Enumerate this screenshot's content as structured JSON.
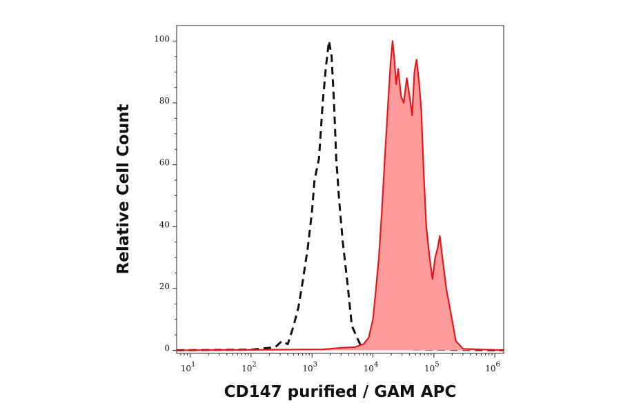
{
  "chart_data": {
    "type": "area",
    "xlabel": "CD147 purified / GAM APC",
    "ylabel": "Relative Cell Count",
    "x_scale": "log",
    "xlim": [
      6,
      1400000
    ],
    "ylim": [
      -1,
      105
    ],
    "x_ticks": [
      {
        "value": 10,
        "base": "10",
        "exp": "1"
      },
      {
        "value": 100,
        "base": "10",
        "exp": "2"
      },
      {
        "value": 1000,
        "base": "10",
        "exp": "3"
      },
      {
        "value": 10000,
        "base": "10",
        "exp": "4"
      },
      {
        "value": 100000,
        "base": "10",
        "exp": "5"
      },
      {
        "value": 1000000,
        "base": "10",
        "exp": "6"
      }
    ],
    "y_ticks": [
      {
        "value": 0,
        "label": "0"
      },
      {
        "value": 20,
        "label": "20"
      },
      {
        "value": 40,
        "label": "40"
      },
      {
        "value": 60,
        "label": "60"
      },
      {
        "value": 80,
        "label": "80"
      },
      {
        "value": 100,
        "label": "100"
      }
    ],
    "grid": false,
    "legend": "none",
    "series": [
      {
        "style": "dashed",
        "color": "#111111",
        "filled": false,
        "x": [
          6,
          100,
          250,
          320,
          400,
          500,
          600,
          700,
          850,
          1000,
          1100,
          1300,
          1500,
          1700,
          1900,
          2100,
          2300,
          2500,
          2800,
          3200,
          3800,
          4500,
          5500,
          6500,
          8000,
          10000,
          20000,
          50000,
          1400000
        ],
        "y": [
          0,
          0.2,
          1,
          3,
          2,
          8,
          14,
          22,
          33,
          45,
          55,
          62,
          80,
          92,
          100,
          95,
          80,
          62,
          48,
          35,
          22,
          8,
          4,
          1,
          1.5,
          0.5,
          0.5,
          0.3,
          0
        ]
      },
      {
        "style": "solid",
        "color": "#e8161b",
        "fill": "#ff9b9b",
        "filled": true,
        "x": [
          6,
          1500,
          3000,
          5000,
          7000,
          8500,
          10000,
          11000,
          12500,
          14000,
          16000,
          18000,
          19500,
          21000,
          22500,
          24000,
          26000,
          29000,
          32000,
          36000,
          40000,
          44000,
          48000,
          52000,
          57000,
          62000,
          68000,
          75000,
          85000,
          95000,
          105000,
          115000,
          125000,
          140000,
          160000,
          190000,
          230000,
          300000,
          1400000
        ],
        "y": [
          0,
          0.3,
          0.8,
          1,
          2,
          4,
          10,
          18,
          30,
          45,
          65,
          82,
          93,
          100,
          94,
          86,
          91,
          82,
          80,
          88,
          82,
          76,
          90,
          94,
          87,
          78,
          58,
          40,
          30,
          23,
          30,
          33,
          37,
          29,
          20,
          12,
          3,
          0.5,
          0
        ]
      }
    ]
  }
}
